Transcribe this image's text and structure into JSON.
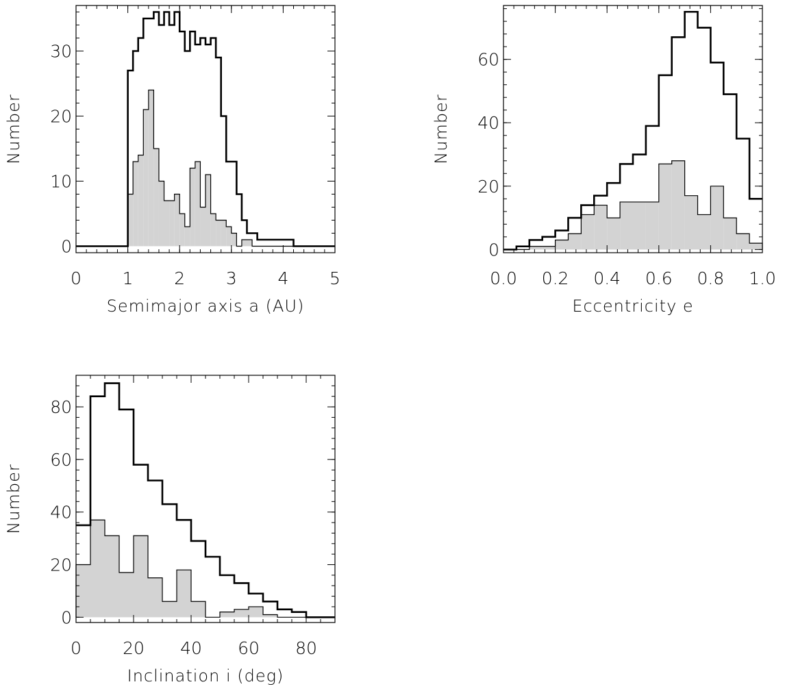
{
  "chart_data": [
    {
      "type": "histogram",
      "xlabel": "Semimajor axis a (AU)",
      "ylabel": "Number",
      "xlim": [
        0,
        5
      ],
      "ylim": [
        -1,
        37
      ],
      "xticks": [
        0,
        1,
        2,
        3,
        4,
        5
      ],
      "xtick_labels": [
        "0",
        "1",
        "2",
        "3",
        "4",
        "5"
      ],
      "yticks": [
        0,
        10,
        20,
        30
      ],
      "ytick_labels": [
        "0",
        "10",
        "20",
        "30"
      ],
      "bin_edges_start": 0,
      "bin_width": 0.1,
      "series": [
        {
          "style": "outline",
          "values": [
            0,
            0,
            0,
            0,
            0,
            0,
            0,
            0,
            0,
            0,
            27,
            30,
            32,
            35,
            35,
            36,
            34,
            36,
            34,
            36,
            33,
            30,
            33,
            31,
            32,
            31,
            32,
            29,
            20,
            13,
            13,
            8,
            4,
            2,
            2,
            1,
            1,
            1,
            1,
            1,
            1,
            1,
            0,
            0,
            0,
            0,
            0,
            0,
            0,
            0
          ]
        },
        {
          "style": "filled",
          "values": [
            0,
            0,
            0,
            0,
            0,
            0,
            0,
            0,
            0,
            0,
            8,
            13,
            14,
            21,
            24,
            15,
            10,
            7,
            7,
            8,
            5,
            3,
            12,
            13,
            6,
            11,
            5,
            4,
            4,
            3,
            2,
            0,
            1,
            1,
            0,
            0,
            0,
            0,
            0,
            0,
            0,
            0,
            0,
            0,
            0,
            0,
            0,
            0,
            0,
            0
          ]
        }
      ]
    },
    {
      "type": "histogram",
      "xlabel": "Eccentricity e",
      "ylabel": "Number",
      "xlim": [
        0,
        1.0
      ],
      "ylim": [
        -1,
        77
      ],
      "xticks": [
        0,
        0.2,
        0.4,
        0.6,
        0.8,
        1.0
      ],
      "xtick_labels": [
        "0.0",
        "0.2",
        "0.4",
        "0.6",
        "0.8",
        "1.0"
      ],
      "yticks": [
        0,
        20,
        40,
        60
      ],
      "ytick_labels": [
        "0",
        "20",
        "40",
        "60"
      ],
      "bin_edges_start": 0,
      "bin_width": 0.05,
      "series": [
        {
          "style": "outline",
          "values": [
            0,
            1,
            3,
            4,
            6,
            10,
            14,
            17,
            21,
            27,
            30,
            39,
            55,
            67,
            75,
            70,
            59,
            49,
            35,
            16
          ]
        },
        {
          "style": "filled",
          "values": [
            0,
            0,
            1,
            1,
            3,
            5,
            11,
            14,
            10,
            15,
            15,
            15,
            27,
            28,
            17,
            11,
            20,
            10,
            5,
            2
          ]
        }
      ]
    },
    {
      "type": "histogram",
      "xlabel": "Inclination i (deg)",
      "ylabel": "Number",
      "xlim": [
        0,
        90
      ],
      "ylim": [
        -2,
        92
      ],
      "xticks": [
        0,
        20,
        40,
        60,
        80
      ],
      "xtick_labels": [
        "0",
        "20",
        "40",
        "60",
        "80"
      ],
      "yticks": [
        0,
        20,
        40,
        60,
        80
      ],
      "ytick_labels": [
        "0",
        "20",
        "40",
        "60",
        "80"
      ],
      "bin_edges_start": 0,
      "bin_width": 5,
      "series": [
        {
          "style": "outline",
          "values": [
            35,
            84,
            89,
            79,
            58,
            52,
            43,
            37,
            29,
            23,
            16,
            13,
            9,
            6,
            3,
            2,
            0,
            0
          ]
        },
        {
          "style": "filled",
          "values": [
            20,
            37,
            31,
            17,
            31,
            15,
            6,
            18,
            6,
            0,
            2,
            3,
            4,
            1,
            0,
            0,
            0,
            0
          ]
        }
      ]
    }
  ]
}
